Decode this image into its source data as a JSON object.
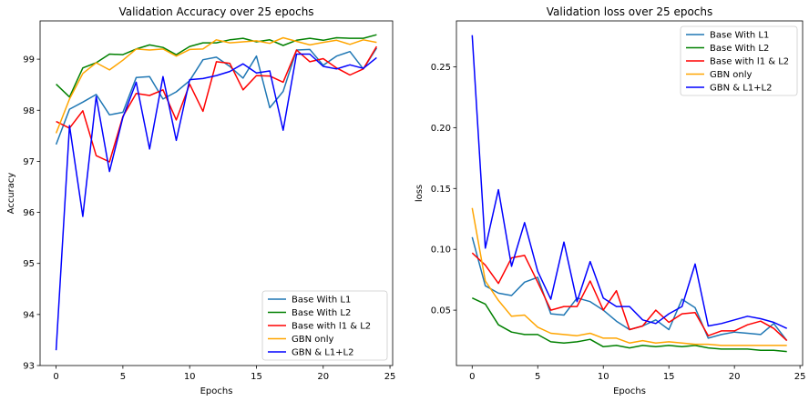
{
  "chart_data": [
    {
      "type": "line",
      "title": "Validation Accuracy over 25 epochs",
      "xlabel": "Epochs",
      "ylabel": "Accuracy",
      "xlim": [
        -1.2,
        25.2
      ],
      "ylim": [
        93.0,
        99.75
      ],
      "xticks": [
        0,
        5,
        10,
        15,
        20,
        25
      ],
      "yticks": [
        93,
        94,
        95,
        96,
        97,
        98,
        99
      ],
      "legend": "lower-right",
      "grid": false,
      "x": [
        0,
        1,
        2,
        3,
        4,
        5,
        6,
        7,
        8,
        9,
        10,
        11,
        12,
        13,
        14,
        15,
        16,
        17,
        18,
        19,
        20,
        21,
        22,
        23,
        24
      ],
      "series": [
        {
          "name": "Base With L1",
          "color": "#1f77b4",
          "values": [
            97.33,
            98.02,
            98.16,
            98.31,
            97.91,
            97.96,
            98.64,
            98.66,
            98.22,
            98.36,
            98.58,
            98.99,
            99.04,
            98.86,
            98.63,
            99.06,
            98.05,
            98.37,
            99.18,
            99.19,
            98.88,
            99.06,
            99.15,
            98.81,
            99.22
          ]
        },
        {
          "name": "Base With L2",
          "color": "#008000",
          "values": [
            98.51,
            98.26,
            98.83,
            98.93,
            99.1,
            99.09,
            99.2,
            99.28,
            99.23,
            99.09,
            99.25,
            99.32,
            99.32,
            99.38,
            99.41,
            99.34,
            99.38,
            99.27,
            99.37,
            99.41,
            99.37,
            99.42,
            99.41,
            99.41,
            99.48
          ]
        },
        {
          "name": "Base with l1 & L2",
          "color": "#ff0000",
          "values": [
            97.78,
            97.65,
            97.99,
            97.11,
            96.99,
            97.88,
            98.33,
            98.29,
            98.4,
            97.81,
            98.51,
            97.98,
            98.95,
            98.92,
            98.4,
            98.68,
            98.67,
            98.55,
            99.18,
            98.95,
            99.01,
            98.83,
            98.69,
            98.81,
            99.25
          ]
        },
        {
          "name": "GBN only",
          "color": "#ffa500",
          "values": [
            97.55,
            98.22,
            98.72,
            98.93,
            98.79,
            98.98,
            99.2,
            99.18,
            99.2,
            99.06,
            99.19,
            99.2,
            99.38,
            99.32,
            99.34,
            99.36,
            99.31,
            99.42,
            99.35,
            99.28,
            99.33,
            99.37,
            99.29,
            99.38,
            99.33
          ]
        },
        {
          "name": "GBN & L1+L2",
          "color": "#0000ff",
          "values": [
            93.3,
            97.7,
            95.92,
            98.27,
            96.8,
            97.86,
            98.55,
            97.24,
            98.66,
            97.41,
            98.6,
            98.62,
            98.68,
            98.76,
            98.91,
            98.73,
            98.77,
            97.61,
            99.1,
            99.1,
            98.86,
            98.81,
            98.89,
            98.82,
            99.03
          ]
        }
      ]
    },
    {
      "type": "line",
      "title": "Validation loss over 25 epochs",
      "xlabel": "Epochs",
      "ylabel": "loss",
      "xlim": [
        -1.2,
        25.2
      ],
      "ylim": [
        0.0045,
        0.2877
      ],
      "xticks": [
        0,
        5,
        10,
        15,
        20,
        25
      ],
      "yticks": [
        0.05,
        0.1,
        0.15,
        0.2,
        0.25
      ],
      "ytick_labels": [
        "0.05",
        "0.10",
        "0.15",
        "0.20",
        "0.25"
      ],
      "legend": "top-right",
      "grid": false,
      "x": [
        0,
        1,
        2,
        3,
        4,
        5,
        6,
        7,
        8,
        9,
        10,
        11,
        12,
        13,
        14,
        15,
        16,
        17,
        18,
        19,
        20,
        21,
        22,
        23,
        24
      ],
      "series": [
        {
          "name": "Base With L1",
          "color": "#1f77b4",
          "values": [
            0.11,
            0.07,
            0.064,
            0.062,
            0.073,
            0.077,
            0.047,
            0.046,
            0.06,
            0.057,
            0.05,
            0.041,
            0.034,
            0.037,
            0.042,
            0.034,
            0.059,
            0.052,
            0.027,
            0.03,
            0.032,
            0.031,
            0.03,
            0.039,
            0.025
          ]
        },
        {
          "name": "Base With L2",
          "color": "#008000",
          "values": [
            0.06,
            0.055,
            0.038,
            0.032,
            0.03,
            0.03,
            0.024,
            0.023,
            0.024,
            0.026,
            0.02,
            0.021,
            0.019,
            0.021,
            0.02,
            0.021,
            0.02,
            0.021,
            0.019,
            0.018,
            0.018,
            0.018,
            0.017,
            0.017,
            0.016
          ]
        },
        {
          "name": "Base with l1 & L2",
          "color": "#ff0000",
          "values": [
            0.097,
            0.087,
            0.072,
            0.093,
            0.095,
            0.073,
            0.05,
            0.053,
            0.053,
            0.074,
            0.05,
            0.066,
            0.034,
            0.037,
            0.05,
            0.04,
            0.047,
            0.048,
            0.029,
            0.033,
            0.033,
            0.038,
            0.041,
            0.035,
            0.025
          ]
        },
        {
          "name": "GBN only",
          "color": "#ffa500",
          "values": [
            0.134,
            0.074,
            0.058,
            0.045,
            0.046,
            0.036,
            0.031,
            0.03,
            0.029,
            0.031,
            0.027,
            0.027,
            0.023,
            0.025,
            0.023,
            0.024,
            0.023,
            0.022,
            0.022,
            0.021,
            0.021,
            0.021,
            0.021,
            0.021,
            0.021
          ]
        },
        {
          "name": "GBN & L1+L2",
          "color": "#0000ff",
          "values": [
            0.276,
            0.101,
            0.149,
            0.086,
            0.122,
            0.082,
            0.059,
            0.106,
            0.057,
            0.09,
            0.06,
            0.053,
            0.053,
            0.042,
            0.039,
            0.047,
            0.053,
            0.088,
            0.037,
            0.039,
            0.042,
            0.045,
            0.043,
            0.04,
            0.035
          ]
        }
      ]
    }
  ]
}
